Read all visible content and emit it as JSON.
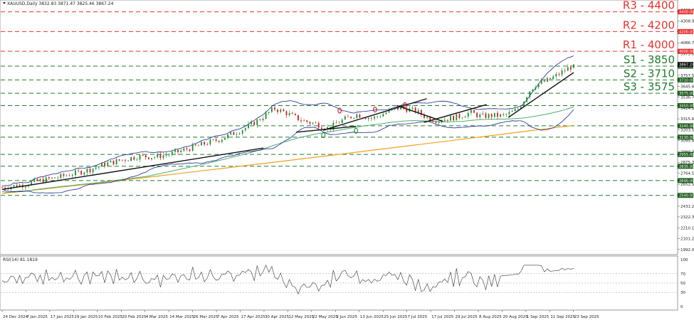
{
  "header": {
    "symbol_line": "XAUUSD,Daily  3832.83 3871.47 3825.46 3867.24",
    "rsi_label": "RSI(14) 81.1819"
  },
  "chart_data": {
    "type": "candlestick",
    "symbol": "XAUUSD",
    "timeframe": "Daily",
    "ohlc_last": {
      "open": 3832.83,
      "high": 3871.47,
      "low": 3825.46,
      "close": 3867.24
    },
    "ylim": [
      1940,
      4520
    ],
    "y_ticks": [
      4420.0,
      4308.9,
      4197.8,
      4086.7,
      3975.6,
      3864.5,
      3757.5,
      3645.6,
      3536.7,
      3424.8,
      3315.6,
      3203.5,
      3095.4,
      2980.3,
      2875.3,
      2764.5,
      2652.5,
      2542.4,
      2431.2,
      2322.3,
      2210.1,
      2101.2,
      1992.0
    ],
    "x_tick_labels": [
      "24 Dec 2024",
      "7 Jan 2025",
      "17 Jan 2025",
      "29 Jan 2025",
      "10 Feb 2025",
      "20 Feb 2025",
      "4 Mar 2025",
      "14 Mar 2025",
      "26 Mar 2025",
      "7 Apr 2025",
      "17 Apr 2025",
      "30 Apr 2025",
      "12 May 2025",
      "22 May 2025",
      "3 Jun 2025",
      "13 Jun 2025",
      "25 Jun 2025",
      "7 Jul 2025",
      "17 Jul 2025",
      "29 Jul 2025",
      "8 Aug 2025",
      "20 Aug 2025",
      "1 Sep 2025",
      "11 Sep 2025",
      "23 Sep 2025"
    ],
    "resistance_levels": [
      {
        "label": "R3 - 4400",
        "value": 4400,
        "tag": "4400.00"
      },
      {
        "label": "R2 - 4200",
        "value": 4200,
        "tag": "4200.00"
      },
      {
        "label": "R1 - 4000",
        "value": 4000,
        "tag": "4000.00"
      }
    ],
    "support_levels": [
      {
        "label": "S1 - 3850",
        "value": 3850,
        "tag": "3850.00"
      },
      {
        "label": "S2 - 3710",
        "value": 3710,
        "tag": "3710.00"
      },
      {
        "label": "S3 - 3575",
        "value": 3575,
        "tag": "3575.00"
      },
      {
        "label": "",
        "value": 3450,
        "tag": "3450.00"
      },
      {
        "label": "",
        "value": 3245,
        "tag": "3245.00"
      },
      {
        "label": "",
        "value": 3130,
        "tag": "3130.00"
      },
      {
        "label": "",
        "value": 2955,
        "tag": "2955.00"
      },
      {
        "label": "",
        "value": 2835,
        "tag": "2835.00"
      },
      {
        "label": "",
        "value": 2690,
        "tag": "2690.00"
      },
      {
        "label": "",
        "value": 2540,
        "tag": "2540.00"
      }
    ],
    "current_price_tag": "3867.24",
    "rsi": {
      "period": 14,
      "value": 81.1819,
      "ylim": [
        0,
        100
      ],
      "ticks": [
        100,
        70,
        50,
        30,
        0
      ],
      "levels": [
        70,
        50,
        30
      ]
    },
    "colors": {
      "resistance": "#e8312f",
      "support": "#1e7b2a",
      "support_tag": "#1e5d1e",
      "bollinger": "#1a2490",
      "ma_green": "#4caf6a",
      "ma_orange": "#f0a020",
      "trendline": "#111111",
      "candle_bull": "#1a8c2a",
      "candle_bear": "#c81e1e"
    }
  }
}
